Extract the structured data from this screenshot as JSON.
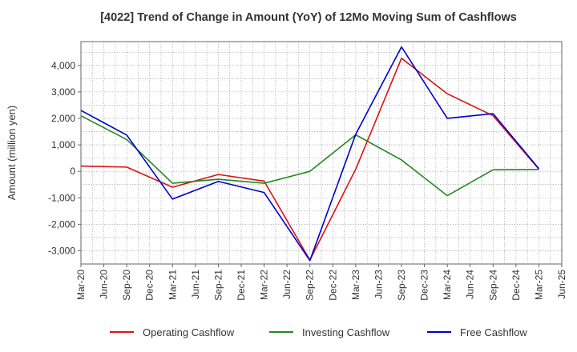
{
  "chart_data": {
    "type": "line",
    "title": "[4022]  Trend of Change in Amount (YoY) of 12Mo Moving Sum of Cashflows",
    "xlabel": "",
    "ylabel": "Amount (million yen)",
    "ylim": [
      -3500,
      4900
    ],
    "yticks": [
      -3000,
      -2000,
      -1000,
      0,
      1000,
      2000,
      3000,
      4000
    ],
    "ytick_labels": [
      "-3,000",
      "-2,000",
      "-1,000",
      "0",
      "1,000",
      "2,000",
      "3,000",
      "4,000"
    ],
    "categories": [
      "Mar-20",
      "Jun-20",
      "Sep-20",
      "Dec-20",
      "Mar-21",
      "Jun-21",
      "Sep-21",
      "Dec-21",
      "Mar-22",
      "Jun-22",
      "Sep-22",
      "Dec-22",
      "Mar-23",
      "Jun-23",
      "Sep-23",
      "Dec-23",
      "Mar-24",
      "Jun-24",
      "Sep-24",
      "Dec-24",
      "Mar-25",
      "Jun-25"
    ],
    "grid": true,
    "legend_position": "bottom",
    "series": [
      {
        "name": "Operating Cashflow",
        "color": "#dd1111",
        "values": [
          200,
          null,
          160,
          null,
          -600,
          null,
          -120,
          null,
          -370,
          null,
          -3350,
          null,
          80,
          null,
          4270,
          null,
          2930,
          null,
          2100,
          null,
          80,
          null
        ]
      },
      {
        "name": "Investing Cashflow",
        "color": "#228822",
        "values": [
          2100,
          null,
          1200,
          null,
          -450,
          null,
          -300,
          null,
          -450,
          null,
          0,
          null,
          1380,
          null,
          430,
          null,
          -920,
          null,
          60,
          null,
          70,
          null
        ]
      },
      {
        "name": "Free Cashflow",
        "color": "#0000cc",
        "values": [
          2300,
          null,
          1370,
          null,
          -1050,
          null,
          -380,
          null,
          -800,
          null,
          -3370,
          null,
          1400,
          null,
          4700,
          null,
          2000,
          null,
          2180,
          null,
          100,
          null
        ]
      }
    ]
  }
}
